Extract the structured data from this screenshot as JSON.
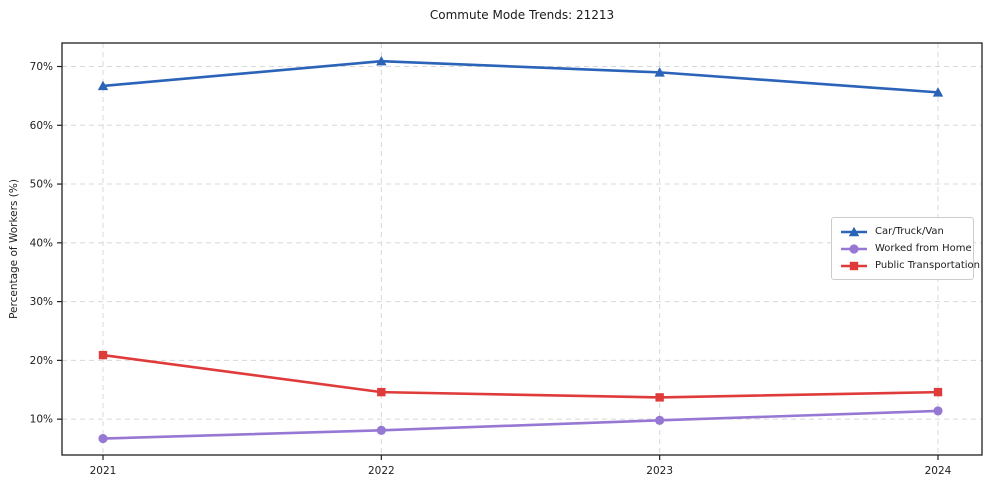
{
  "title": "Commute Mode Trends: 21213",
  "axes": {
    "ylabel": "Percentage of Workers (%)",
    "xlabel": "",
    "y_tick_labels": [
      "10%",
      "20%",
      "30%",
      "40%",
      "50%",
      "60%",
      "70%"
    ],
    "x_tick_labels": [
      "2021",
      "2022",
      "2023",
      "2024"
    ]
  },
  "colors": {
    "grid": "#d8d8d8",
    "spine": "#1f1f1f",
    "text": "#202020",
    "legend_border": "#cccccc",
    "background": "#ffffff"
  },
  "chart_data": {
    "type": "line",
    "title": "Commute Mode Trends: 21213",
    "xlabel": "",
    "ylabel": "Percentage of Workers (%)",
    "categories": [
      "2021",
      "2022",
      "2023",
      "2024"
    ],
    "series": [
      {
        "name": "Car/Truck/Van",
        "color": "#2a63b8",
        "marker": "triangle",
        "values": [
          66.7,
          70.9,
          69.0,
          65.6
        ]
      },
      {
        "name": "Worked from Home",
        "color": "#9678d4",
        "marker": "circle",
        "values": [
          6.7,
          8.1,
          9.8,
          11.4
        ]
      },
      {
        "name": "Public Transportation",
        "color": "#e03b3b",
        "marker": "square",
        "values": [
          20.9,
          14.6,
          13.7,
          14.6
        ]
      }
    ],
    "y_ticks": [
      10,
      20,
      30,
      40,
      50,
      60,
      70
    ],
    "ylim": [
      3.9,
      74.0
    ],
    "grid": true,
    "grid_style": "dashed",
    "legend_position": "center right"
  }
}
